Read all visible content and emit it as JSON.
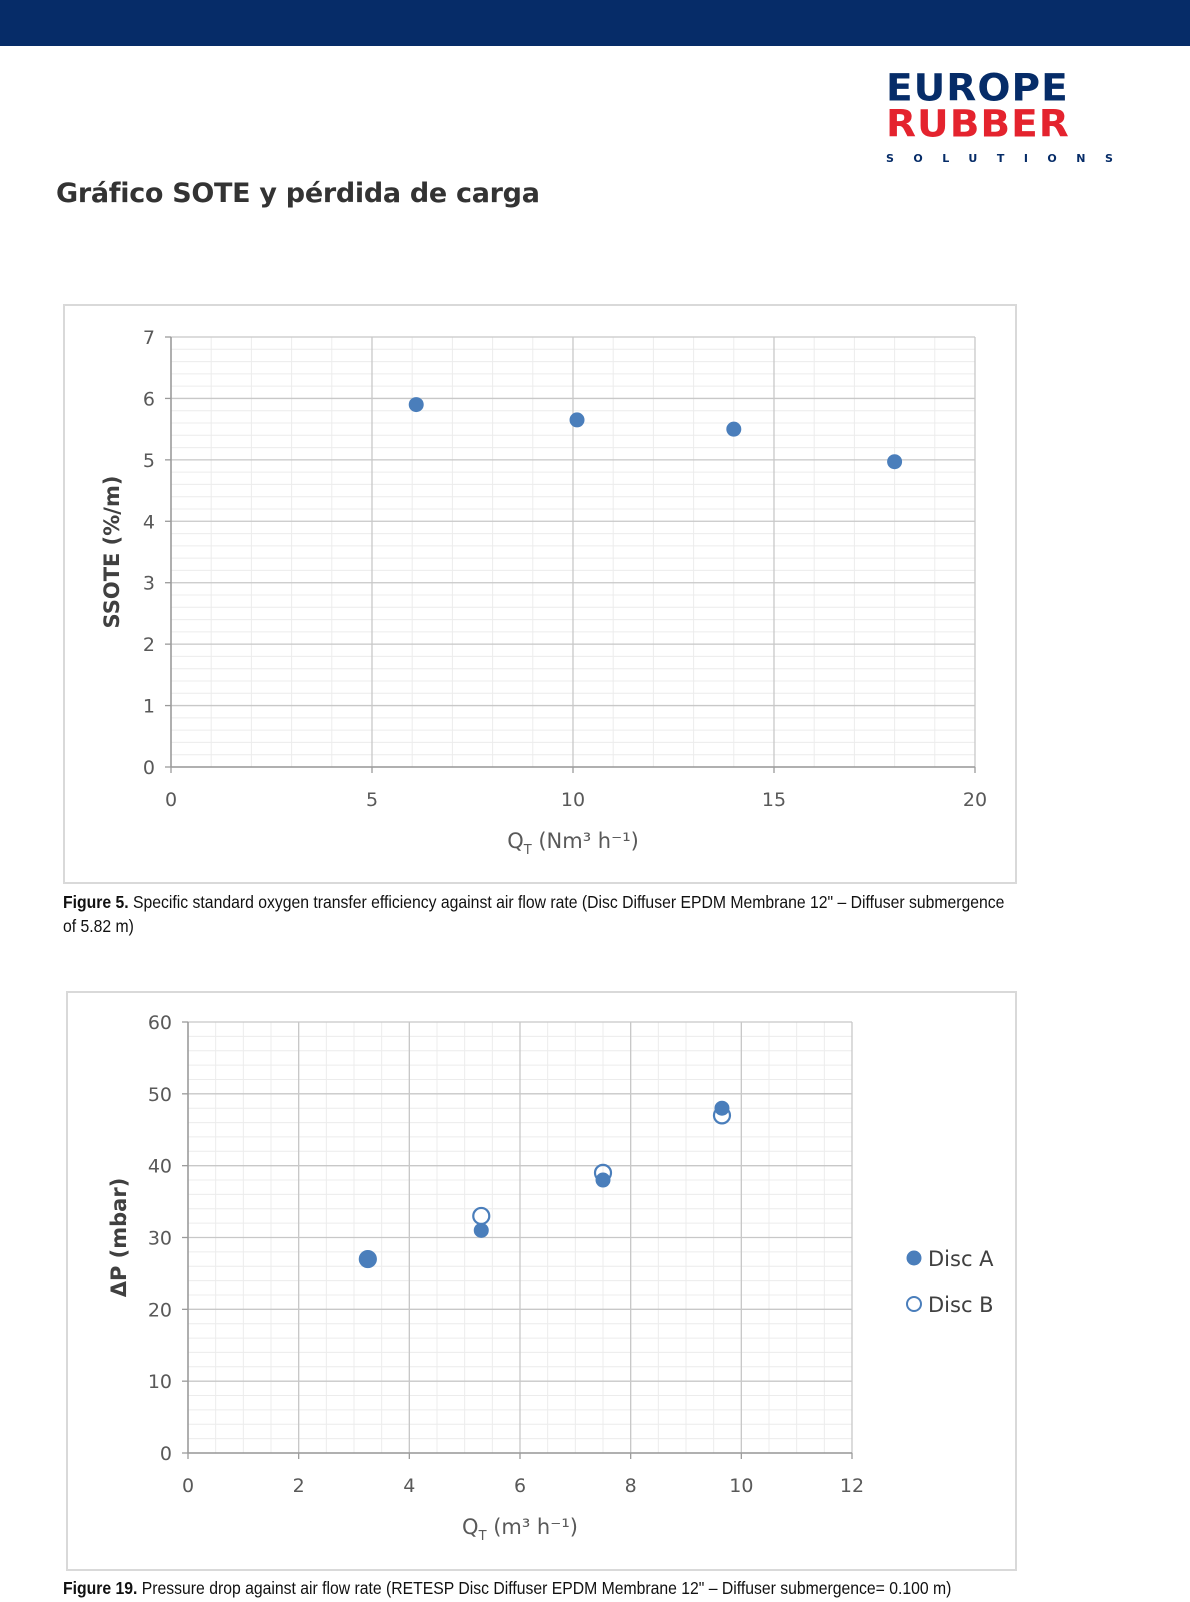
{
  "header": {
    "brand_line1": "EUROPE",
    "brand_line2": "RUBBER",
    "brand_line3": "SOLUTIONS",
    "bar_color": "#062c68",
    "brand_blue": "#062c68",
    "brand_red": "#e4232e"
  },
  "page": {
    "title": "Gráfico SOTE y pérdida de carga"
  },
  "chart_data": [
    {
      "type": "scatter",
      "xlabel": "Q_T (Nm³ h⁻¹)",
      "ylabel": "SSOTE (%/m)",
      "xlim": [
        0,
        20
      ],
      "ylim": [
        0,
        7
      ],
      "xticks": [
        0,
        5,
        10,
        15,
        20
      ],
      "yticks": [
        0,
        1,
        2,
        3,
        4,
        5,
        6,
        7
      ],
      "grid": true,
      "series": [
        {
          "marker": "filled",
          "color": "#4a7ebb",
          "x": [
            6.1,
            10.1,
            14.0,
            18.0
          ],
          "y": [
            5.9,
            5.65,
            5.5,
            4.97
          ]
        }
      ],
      "caption_label": "Figure 5.",
      "caption": "Specific standard oxygen transfer efficiency against air flow rate (Disc Diffuser EPDM Membrane 12\" – Diffuser submergence of 5.82 m)"
    },
    {
      "type": "scatter",
      "xlabel": "Q_T (m³ h⁻¹)",
      "ylabel": "ΔP (mbar)",
      "xlim": [
        0,
        12
      ],
      "ylim": [
        0,
        60
      ],
      "xticks": [
        0,
        2,
        4,
        6,
        8,
        10,
        12
      ],
      "yticks": [
        0,
        10,
        20,
        30,
        40,
        50,
        60
      ],
      "grid": true,
      "legend": "right",
      "series": [
        {
          "name": "Disc A",
          "marker": "filled",
          "color": "#4a7ebb",
          "x": [
            3.25,
            5.3,
            7.5,
            9.65
          ],
          "y": [
            27,
            31,
            38,
            48
          ]
        },
        {
          "name": "Disc B",
          "marker": "open",
          "color": "#4a7ebb",
          "x": [
            3.25,
            5.3,
            7.5,
            9.65
          ],
          "y": [
            27,
            33,
            39,
            47
          ]
        }
      ],
      "caption_label": "Figure 19.",
      "caption": "Pressure drop against air flow rate (RETESP Disc Diffuser EPDM Membrane 12\" – Diffuser submergence= 0.100 m)"
    }
  ]
}
